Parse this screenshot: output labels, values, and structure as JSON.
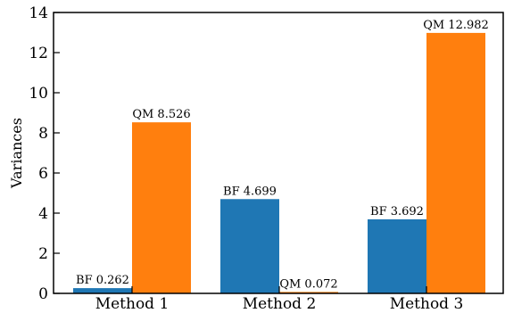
{
  "chart_data": {
    "type": "bar",
    "categories": [
      "Method 1",
      "Method 2",
      "Method 3"
    ],
    "series": [
      {
        "values": [
          0.262,
          4.699,
          3.692
        ],
        "color": "#1f77b4"
      },
      {
        "values": [
          8.526,
          0.072,
          12.982
        ],
        "color": "#ff7f0e"
      }
    ],
    "data_labels": [
      [
        "BF 0.262",
        "BF 4.699",
        "BF 3.692"
      ],
      [
        "QM 8.526",
        "QM 0.072",
        "QM 12.982"
      ]
    ],
    "ylabel": "Variances",
    "xlabel": "",
    "title": "",
    "ylim": [
      0,
      14
    ],
    "yticks": [
      "0",
      "2",
      "4",
      "6",
      "8",
      "10",
      "12",
      "14"
    ],
    "grid": false
  }
}
